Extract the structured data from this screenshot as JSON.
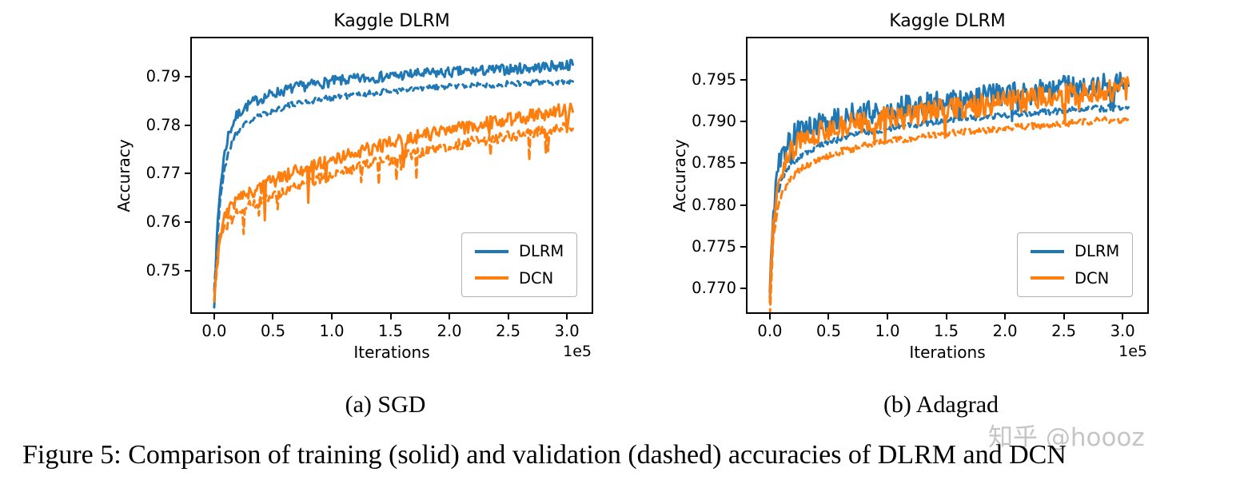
{
  "page": {
    "caption": "Figure 5: Comparison of training (solid) and validation (dashed) accuracies of DLRM and DCN",
    "watermark": "知乎 @hoooz"
  },
  "colors": {
    "dlrm": "#1f77b4",
    "dcn": "#ff7f0e",
    "axis": "#000000",
    "legend_border": "#b3b3b3"
  },
  "chart_data": [
    {
      "type": "line",
      "title": "Kaggle DLRM",
      "subcaption": "(a) SGD",
      "xlabel": "Iterations",
      "ylabel": "Accuracy",
      "x_offset_label": "1e5",
      "grid": false,
      "xlim": [
        -0.19,
        3.21
      ],
      "ylim": [
        0.7414,
        0.7979
      ],
      "xticks": [
        0.0,
        0.5,
        1.0,
        1.5,
        2.0,
        2.5,
        3.0
      ],
      "xtick_labels": [
        "0.0",
        "0.5",
        "1.0",
        "1.5",
        "2.0",
        "2.5",
        "3.0"
      ],
      "yticks": [
        0.75,
        0.76,
        0.77,
        0.78,
        0.79
      ],
      "ytick_labels": [
        "0.75",
        "0.76",
        "0.77",
        "0.78",
        "0.79"
      ],
      "legend_position": "lower right",
      "legend": [
        {
          "label": "DLRM",
          "color": "#1f77b4"
        },
        {
          "label": "DCN",
          "color": "#ff7f0e"
        }
      ],
      "series": [
        {
          "name": "DLRM train",
          "color": "#1f77b4",
          "style": "solid",
          "noise": 0.0011,
          "spike": 0,
          "seed": 7,
          "anchors": [
            [
              0,
              0.7435
            ],
            [
              0.015,
              0.752
            ],
            [
              0.03,
              0.76
            ],
            [
              0.05,
              0.7665
            ],
            [
              0.08,
              0.773
            ],
            [
              0.12,
              0.778
            ],
            [
              0.18,
              0.7815
            ],
            [
              0.25,
              0.7835
            ],
            [
              0.35,
              0.785
            ],
            [
              0.5,
              0.7865
            ],
            [
              0.7,
              0.7878
            ],
            [
              1.0,
              0.789
            ],
            [
              1.3,
              0.7897
            ],
            [
              1.7,
              0.7905
            ],
            [
              2.1,
              0.791
            ],
            [
              2.5,
              0.7915
            ],
            [
              2.8,
              0.792
            ],
            [
              3.05,
              0.7925
            ]
          ]
        },
        {
          "name": "DLRM validation",
          "color": "#1f77b4",
          "style": "dashed",
          "noise": 0.0006,
          "spike": 0,
          "seed": 21,
          "anchors": [
            [
              0,
              0.746
            ],
            [
              0.03,
              0.758
            ],
            [
              0.05,
              0.764
            ],
            [
              0.08,
              0.77
            ],
            [
              0.12,
              0.7745
            ],
            [
              0.18,
              0.778
            ],
            [
              0.25,
              0.78
            ],
            [
              0.35,
              0.7815
            ],
            [
              0.5,
              0.783
            ],
            [
              0.7,
              0.7845
            ],
            [
              1.0,
              0.7857
            ],
            [
              1.5,
              0.787
            ],
            [
              2.0,
              0.788
            ],
            [
              2.5,
              0.7885
            ],
            [
              3.05,
              0.789
            ]
          ]
        },
        {
          "name": "DCN train",
          "color": "#ff7f0e",
          "style": "solid",
          "noise": 0.0014,
          "spike": 0.005,
          "seed": 33,
          "anchors": [
            [
              0,
              0.7435
            ],
            [
              0.02,
              0.75
            ],
            [
              0.04,
              0.7555
            ],
            [
              0.07,
              0.759
            ],
            [
              0.1,
              0.7615
            ],
            [
              0.15,
              0.7635
            ],
            [
              0.22,
              0.765
            ],
            [
              0.3,
              0.766
            ],
            [
              0.4,
              0.7672
            ],
            [
              0.5,
              0.7685
            ],
            [
              0.7,
              0.7705
            ],
            [
              0.9,
              0.772
            ],
            [
              1.1,
              0.7735
            ],
            [
              1.4,
              0.7757
            ],
            [
              1.7,
              0.7775
            ],
            [
              2.0,
              0.779
            ],
            [
              2.3,
              0.7803
            ],
            [
              2.6,
              0.7815
            ],
            [
              2.85,
              0.7825
            ],
            [
              3.05,
              0.7835
            ]
          ]
        },
        {
          "name": "DCN validation",
          "color": "#ff7f0e",
          "style": "dashed",
          "noise": 0.0011,
          "spike": 0.004,
          "seed": 44,
          "anchors": [
            [
              0,
              0.745
            ],
            [
              0.03,
              0.753
            ],
            [
              0.05,
              0.7565
            ],
            [
              0.08,
              0.7585
            ],
            [
              0.12,
              0.76
            ],
            [
              0.18,
              0.7615
            ],
            [
              0.25,
              0.7628
            ],
            [
              0.35,
              0.764
            ],
            [
              0.5,
              0.7655
            ],
            [
              0.7,
              0.7675
            ],
            [
              0.9,
              0.769
            ],
            [
              1.1,
              0.7705
            ],
            [
              1.4,
              0.7725
            ],
            [
              1.7,
              0.774
            ],
            [
              2.0,
              0.7757
            ],
            [
              2.3,
              0.777
            ],
            [
              2.6,
              0.778
            ],
            [
              2.85,
              0.779
            ],
            [
              3.05,
              0.78
            ]
          ]
        }
      ]
    },
    {
      "type": "line",
      "title": "Kaggle DLRM",
      "subcaption": "(b) Adagrad",
      "xlabel": "Iterations",
      "ylabel": "Accuracy",
      "x_offset_label": "1e5",
      "grid": false,
      "xlim": [
        -0.19,
        3.21
      ],
      "ylim": [
        0.7671,
        0.8
      ],
      "xticks": [
        0.0,
        0.5,
        1.0,
        1.5,
        2.0,
        2.5,
        3.0
      ],
      "xtick_labels": [
        "0.0",
        "0.5",
        "1.0",
        "1.5",
        "2.0",
        "2.5",
        "3.0"
      ],
      "yticks": [
        0.77,
        0.775,
        0.78,
        0.785,
        0.79,
        0.795
      ],
      "ytick_labels": [
        "0.770",
        "0.775",
        "0.780",
        "0.785",
        "0.790",
        "0.795"
      ],
      "legend_position": "lower right",
      "legend": [
        {
          "label": "DLRM",
          "color": "#1f77b4"
        },
        {
          "label": "DCN",
          "color": "#ff7f0e"
        }
      ],
      "series": [
        {
          "name": "DLRM train",
          "color": "#1f77b4",
          "style": "solid",
          "noise": 0.0014,
          "spike": 0.002,
          "seed": 5,
          "anchors": [
            [
              0,
              0.769
            ],
            [
              0.02,
              0.777
            ],
            [
              0.05,
              0.7825
            ],
            [
              0.08,
              0.785
            ],
            [
              0.12,
              0.7865
            ],
            [
              0.18,
              0.788
            ],
            [
              0.25,
              0.7888
            ],
            [
              0.35,
              0.7895
            ],
            [
              0.5,
              0.79
            ],
            [
              0.7,
              0.7908
            ],
            [
              1.0,
              0.7915
            ],
            [
              1.3,
              0.792
            ],
            [
              1.6,
              0.7927
            ],
            [
              2.0,
              0.7933
            ],
            [
              2.4,
              0.794
            ],
            [
              2.7,
              0.7943
            ],
            [
              3.05,
              0.7947
            ]
          ]
        },
        {
          "name": "DLRM validation",
          "color": "#1f77b4",
          "style": "dashed",
          "noise": 0.0004,
          "spike": 0,
          "seed": 15,
          "anchors": [
            [
              0,
              0.769
            ],
            [
              0.03,
              0.7775
            ],
            [
              0.06,
              0.781
            ],
            [
              0.1,
              0.7832
            ],
            [
              0.15,
              0.7845
            ],
            [
              0.22,
              0.7855
            ],
            [
              0.3,
              0.7863
            ],
            [
              0.45,
              0.7873
            ],
            [
              0.6,
              0.788
            ],
            [
              0.8,
              0.7887
            ],
            [
              1.0,
              0.7892
            ],
            [
              1.3,
              0.7898
            ],
            [
              1.6,
              0.7903
            ],
            [
              2.0,
              0.7908
            ],
            [
              2.4,
              0.7912
            ],
            [
              2.7,
              0.7915
            ],
            [
              3.05,
              0.7918
            ]
          ]
        },
        {
          "name": "DCN train",
          "color": "#ff7f0e",
          "style": "solid",
          "noise": 0.0014,
          "spike": 0.002,
          "seed": 25,
          "anchors": [
            [
              0,
              0.768
            ],
            [
              0.02,
              0.7755
            ],
            [
              0.05,
              0.781
            ],
            [
              0.08,
              0.7835
            ],
            [
              0.12,
              0.785
            ],
            [
              0.18,
              0.7865
            ],
            [
              0.25,
              0.7875
            ],
            [
              0.35,
              0.7883
            ],
            [
              0.5,
              0.789
            ],
            [
              0.7,
              0.7898
            ],
            [
              1.0,
              0.7905
            ],
            [
              1.3,
              0.791
            ],
            [
              1.6,
              0.7917
            ],
            [
              2.0,
              0.7923
            ],
            [
              2.4,
              0.793
            ],
            [
              2.7,
              0.7935
            ],
            [
              3.05,
              0.794
            ]
          ]
        },
        {
          "name": "DCN validation",
          "color": "#ff7f0e",
          "style": "dashed",
          "noise": 0.0004,
          "spike": 0,
          "seed": 35,
          "anchors": [
            [
              0,
              0.767
            ],
            [
              0.03,
              0.776
            ],
            [
              0.06,
              0.779
            ],
            [
              0.1,
              0.7812
            ],
            [
              0.15,
              0.7827
            ],
            [
              0.22,
              0.7838
            ],
            [
              0.3,
              0.7847
            ],
            [
              0.45,
              0.7857
            ],
            [
              0.6,
              0.7864
            ],
            [
              0.8,
              0.7871
            ],
            [
              1.0,
              0.7876
            ],
            [
              1.3,
              0.7882
            ],
            [
              1.6,
              0.7887
            ],
            [
              2.0,
              0.7892
            ],
            [
              2.4,
              0.7897
            ],
            [
              2.7,
              0.79
            ],
            [
              3.05,
              0.7903
            ]
          ]
        }
      ]
    }
  ]
}
